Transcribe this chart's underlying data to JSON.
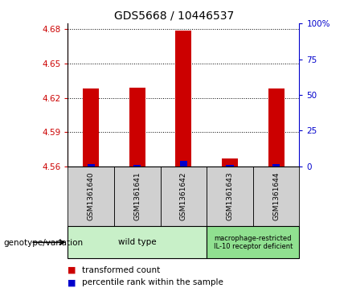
{
  "title": "GDS5668 / 10446537",
  "samples": [
    "GSM1361640",
    "GSM1361641",
    "GSM1361642",
    "GSM1361643",
    "GSM1361644"
  ],
  "red_values": [
    4.628,
    4.629,
    4.679,
    4.567,
    4.628
  ],
  "blue_values": [
    4.562,
    4.561,
    4.565,
    4.561,
    4.562
  ],
  "y_min": 4.56,
  "y_max": 4.685,
  "y_ticks": [
    4.56,
    4.59,
    4.62,
    4.65,
    4.68
  ],
  "y2_ticks": [
    0,
    25,
    50,
    75,
    100
  ],
  "bar_width": 0.35,
  "red_color": "#cc0000",
  "blue_color": "#0000cc",
  "group1_label": "wild type",
  "group2_label": "macrophage-restricted\nIL-10 receptor deficient",
  "group1_color": "#c8f0c8",
  "group2_color": "#90e090",
  "sample_box_color": "#d0d0d0",
  "legend_red": "transformed count",
  "legend_blue": "percentile rank within the sample",
  "genotype_label": "genotype/variation",
  "title_fontsize": 10,
  "axis_fontsize": 7.5,
  "sample_fontsize": 6.5,
  "geno_fontsize": 7.5,
  "legend_fontsize": 7.5
}
